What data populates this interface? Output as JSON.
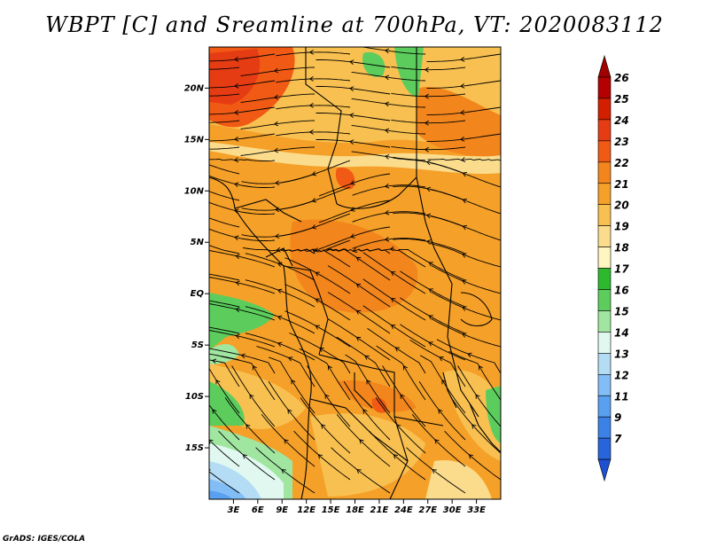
{
  "title": "WBPT [C] and Sreamline at 700hPa, VT: 2020083112",
  "credit": "GrADS: IGES/COLA",
  "map": {
    "lon_range": [
      0,
      36
    ],
    "lat_range": [
      -20,
      24
    ],
    "lat_labels": [
      "20N",
      "15N",
      "10N",
      "5N",
      "EQ",
      "5S",
      "10S",
      "15S"
    ],
    "lat_values": [
      20,
      15,
      10,
      5,
      0,
      -5,
      -10,
      -15
    ],
    "lon_labels": [
      "3E",
      "6E",
      "9E",
      "12E",
      "15E",
      "18E",
      "21E",
      "24E",
      "27E",
      "30E",
      "33E"
    ],
    "lon_values": [
      3,
      6,
      9,
      12,
      15,
      18,
      21,
      24,
      27,
      30,
      33
    ]
  },
  "colorbar": {
    "labels": [
      "26",
      "25",
      "24",
      "23",
      "22",
      "21",
      "20",
      "19",
      "18",
      "17",
      "16",
      "15",
      "14",
      "13",
      "12",
      "11",
      "9",
      "7"
    ],
    "colors": [
      "#b40000",
      "#d41e00",
      "#e63c14",
      "#f05a14",
      "#f2851c",
      "#f5a028",
      "#f8c050",
      "#fadc8c",
      "#fff5c0",
      "#2eb82e",
      "#5ccd5c",
      "#a0e6a0",
      "#e0f8f0",
      "#b4dcf5",
      "#82bef5",
      "#5aa0f0",
      "#3c82e6",
      "#2864dc"
    ],
    "top_arrow_color": "#a00000",
    "bottom_arrow_color": "#1e50d2"
  }
}
